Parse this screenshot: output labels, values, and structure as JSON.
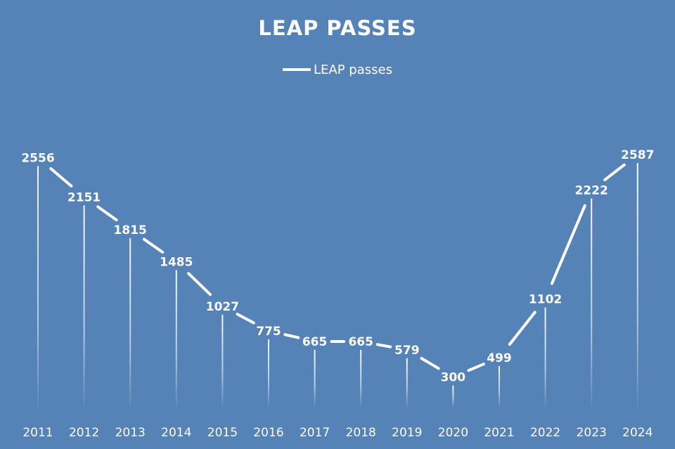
{
  "chart_data": {
    "type": "line",
    "title": "LEAP PASSES",
    "legend": {
      "placement": "top-center",
      "entries": [
        "LEAP passes"
      ]
    },
    "categories": [
      "2011",
      "2012",
      "2013",
      "2014",
      "2015",
      "2016",
      "2017",
      "2018",
      "2019",
      "2020",
      "2021",
      "2022",
      "2023",
      "2024"
    ],
    "series": [
      {
        "name": "LEAP passes",
        "values": [
          2556,
          2151,
          1815,
          1485,
          1027,
          775,
          665,
          665,
          579,
          300,
          499,
          1102,
          2222,
          2587
        ]
      }
    ],
    "ylim": [
      0,
      2600
    ],
    "grid": false,
    "colors": {
      "background": "#5583b8",
      "line": "#ffffff",
      "text": "#ffffff"
    }
  }
}
